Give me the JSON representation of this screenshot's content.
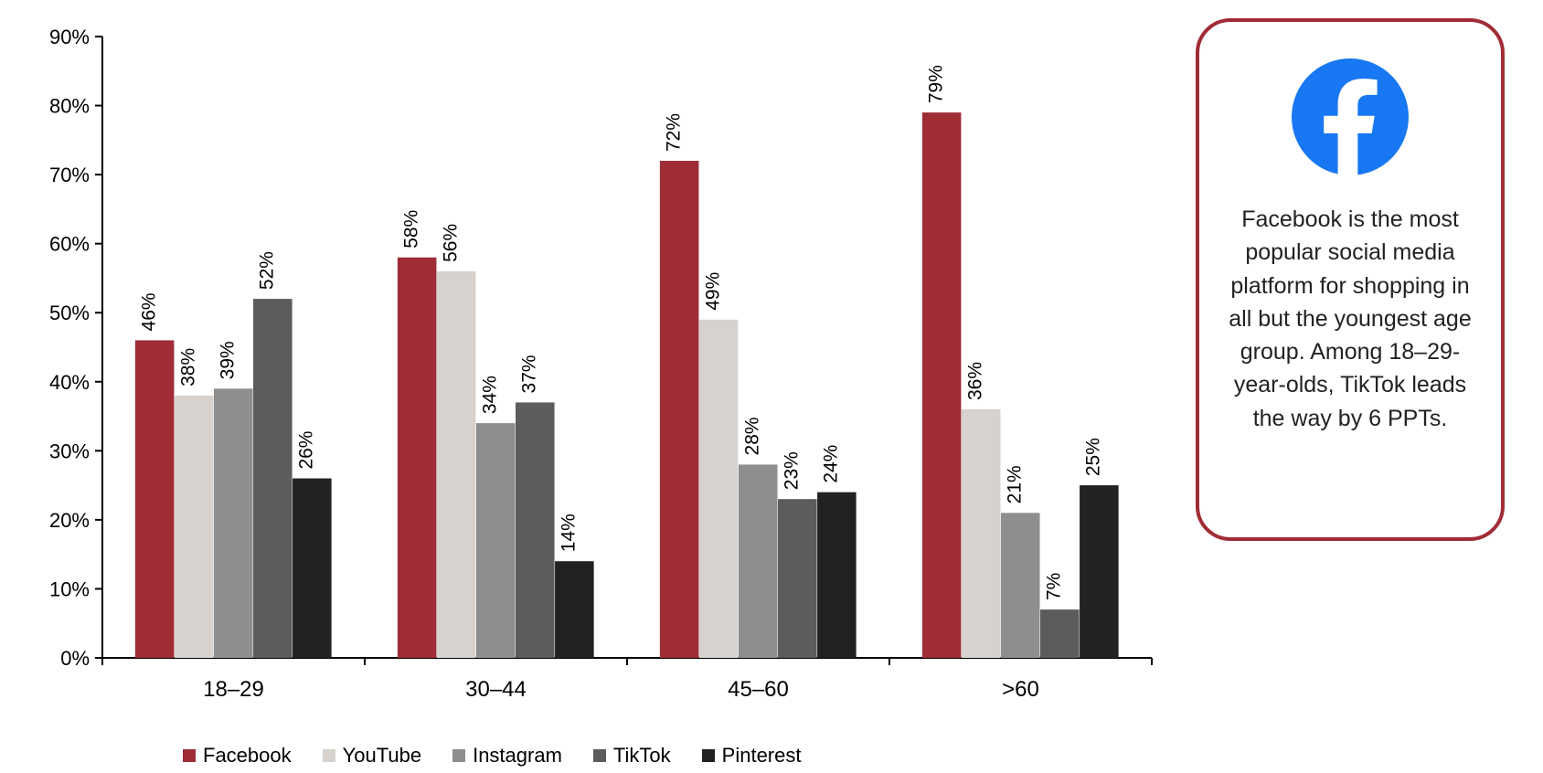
{
  "chart": {
    "type": "bar",
    "background_color": "#ffffff",
    "axis_color": "#000000",
    "ylabel_fontsize": 22,
    "xlabel_fontsize": 24,
    "value_label_fontsize": 21,
    "legend_fontsize": 22,
    "value_label_rotation_deg": -90,
    "ylim": [
      0,
      90
    ],
    "ytick_step": 10,
    "y_ticks": [
      "0%",
      "10%",
      "20%",
      "30%",
      "40%",
      "50%",
      "60%",
      "70%",
      "80%",
      "90%"
    ],
    "categories": [
      "18–29",
      "30–44",
      "45–60",
      ">60"
    ],
    "series": [
      {
        "name": "Facebook",
        "color": "#a02c36",
        "values": [
          46,
          58,
          72,
          79
        ]
      },
      {
        "name": "YouTube",
        "color": "#d7d2cd",
        "values": [
          38,
          56,
          49,
          36
        ]
      },
      {
        "name": "Instagram",
        "color": "#8e8e8e",
        "values": [
          39,
          34,
          28,
          21
        ]
      },
      {
        "name": "TikTok",
        "color": "#5c5c5c",
        "values": [
          52,
          37,
          23,
          7
        ]
      },
      {
        "name": "Pinterest",
        "color": "#222222",
        "values": [
          26,
          14,
          24,
          25
        ]
      }
    ],
    "bar_gap_within_group": 0,
    "group_gap_ratio": 0.25,
    "tick_mark_length": 8
  },
  "callout": {
    "border_color": "#a02c36",
    "border_width": 4,
    "border_radius": 38,
    "logo": {
      "name": "facebook",
      "bg": "#1877f2",
      "fg": "#ffffff"
    },
    "caption": "Facebook is the most popular social media platform for shopping in all but the youngest age group. Among 18–29-year-olds, TikTok leads the way by 6 PPTs.",
    "caption_fontsize": 25
  }
}
